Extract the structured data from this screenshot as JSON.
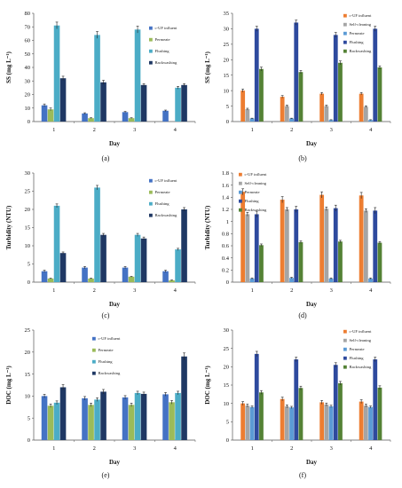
{
  "chart_data": [
    {
      "type": "bar",
      "panel_label": "(a)",
      "categories": [
        "1",
        "2",
        "3",
        "4"
      ],
      "ylabel": "SS (mg L⁻¹)",
      "xlabel": "Day",
      "ylim": [
        0,
        80
      ],
      "yticks": [
        0,
        10,
        20,
        30,
        40,
        50,
        60,
        70,
        80
      ],
      "legend_position": "right",
      "series": [
        {
          "name": "c-UF influent",
          "color": "#4472c4",
          "values": [
            12,
            6,
            7,
            8
          ],
          "errors": [
            1,
            0.5,
            0.5,
            0.5
          ]
        },
        {
          "name": "Permeate",
          "color": "#9bbb59",
          "values": [
            9,
            2.5,
            2.5,
            0
          ],
          "errors": [
            1,
            0.3,
            0.3,
            0
          ]
        },
        {
          "name": "Flushing",
          "color": "#4bacc6",
          "values": [
            71,
            64,
            68,
            25
          ],
          "errors": [
            2.5,
            2.5,
            2.5,
            1
          ]
        },
        {
          "name": "Backwashing",
          "color": "#1f3864",
          "values": [
            32,
            29,
            27,
            27
          ],
          "errors": [
            1.5,
            1.5,
            1,
            1
          ]
        }
      ]
    },
    {
      "type": "bar",
      "panel_label": "(b)",
      "categories": [
        "1",
        "2",
        "3",
        "4"
      ],
      "ylabel": "SS (mg L⁻¹)",
      "xlabel": "Day",
      "ylim": [
        0,
        35
      ],
      "yticks": [
        0,
        5,
        10,
        15,
        20,
        25,
        30,
        35
      ],
      "legend_position": "right",
      "series": [
        {
          "name": "c-UF influent",
          "color": "#ed7d31",
          "values": [
            10,
            8,
            9,
            9
          ],
          "errors": [
            0.5,
            0.4,
            0.4,
            0.4
          ]
        },
        {
          "name": "Self-cleaning",
          "color": "#a5a5a5",
          "values": [
            4,
            5,
            5,
            4.8
          ],
          "errors": [
            0.3,
            0.3,
            0.3,
            0.3
          ]
        },
        {
          "name": "Permeate",
          "color": "#5b9bd5",
          "values": [
            1,
            1,
            0.5,
            0.5
          ],
          "errors": [
            0.1,
            0.1,
            0.1,
            0.1
          ]
        },
        {
          "name": "Flushing",
          "color": "#2e4a9e",
          "values": [
            30,
            32,
            28,
            30
          ],
          "errors": [
            0.8,
            0.8,
            0.8,
            0.8
          ]
        },
        {
          "name": "Backwashing",
          "color": "#548235",
          "values": [
            17,
            16,
            19,
            17.5
          ],
          "errors": [
            0.6,
            0.5,
            0.6,
            0.5
          ]
        }
      ]
    },
    {
      "type": "bar",
      "panel_label": "(c)",
      "categories": [
        "1",
        "2",
        "3",
        "4"
      ],
      "ylabel": "Turbidity (NTU)",
      "xlabel": "Day",
      "ylim": [
        0,
        30
      ],
      "yticks": [
        0,
        5,
        10,
        15,
        20,
        25,
        30
      ],
      "legend_position": "right",
      "series": [
        {
          "name": "c-UF influent",
          "color": "#4472c4",
          "values": [
            3,
            4,
            4,
            3
          ],
          "errors": [
            0.3,
            0.3,
            0.3,
            0.3
          ]
        },
        {
          "name": "Permeate",
          "color": "#9bbb59",
          "values": [
            1,
            1,
            1.5,
            0.5
          ],
          "errors": [
            0.1,
            0.1,
            0.1,
            0.1
          ]
        },
        {
          "name": "Flushing",
          "color": "#4bacc6",
          "values": [
            21,
            26,
            13,
            9
          ],
          "errors": [
            0.5,
            0.6,
            0.4,
            0.3
          ]
        },
        {
          "name": "Backwashing",
          "color": "#1f3864",
          "values": [
            8,
            13,
            12,
            20
          ],
          "errors": [
            0.3,
            0.4,
            0.4,
            0.5
          ]
        }
      ]
    },
    {
      "type": "bar",
      "panel_label": "(d)",
      "categories": [
        "1",
        "2",
        "3",
        "4"
      ],
      "ylabel": "Turbidity (NTU)",
      "xlabel": "Day",
      "ylim": [
        0,
        1.8
      ],
      "yticks": [
        "0",
        "0.2",
        "0.4",
        "0.6",
        "0.8",
        "1",
        "1.2",
        "1.4",
        "1.6",
        "1.8"
      ],
      "legend_position": "left",
      "series": [
        {
          "name": "c-UF influent",
          "color": "#ed7d31",
          "values": [
            1.49,
            1.36,
            1.44,
            1.43
          ],
          "errors": [
            0.05,
            0.05,
            0.05,
            0.05
          ]
        },
        {
          "name": "Self-cleaning",
          "color": "#a5a5a5",
          "values": [
            1.12,
            1.2,
            1.21,
            1.18
          ],
          "errors": [
            0.03,
            0.03,
            0.03,
            0.03
          ]
        },
        {
          "name": "Permeate",
          "color": "#5b9bd5",
          "values": [
            0.06,
            0.07,
            0.06,
            0.06
          ],
          "errors": [
            0.01,
            0.01,
            0.01,
            0.01
          ]
        },
        {
          "name": "Flushing",
          "color": "#2e4a9e",
          "values": [
            1.12,
            1.2,
            1.22,
            1.18
          ],
          "errors": [
            0.05,
            0.05,
            0.05,
            0.05
          ]
        },
        {
          "name": "Backwashing",
          "color": "#548235",
          "values": [
            0.61,
            0.66,
            0.67,
            0.65
          ],
          "errors": [
            0.02,
            0.02,
            0.02,
            0.02
          ]
        }
      ]
    },
    {
      "type": "bar",
      "panel_label": "(e)",
      "categories": [
        "1",
        "2",
        "3",
        "4"
      ],
      "ylabel": "DOC (mg L⁻¹)",
      "xlabel": "Day",
      "ylim": [
        0,
        25
      ],
      "yticks": [
        0,
        5,
        10,
        15,
        20,
        25
      ],
      "legend_position": "right",
      "series": [
        {
          "name": "c-UF influent",
          "color": "#4472c4",
          "values": [
            10,
            9.5,
            9.7,
            10.4
          ],
          "errors": [
            0.4,
            0.4,
            0.4,
            0.4
          ]
        },
        {
          "name": "Permeate",
          "color": "#9bbb59",
          "values": [
            7.8,
            8,
            8,
            8.6
          ],
          "errors": [
            0.4,
            0.4,
            0.4,
            0.4
          ]
        },
        {
          "name": "Flushing",
          "color": "#4bacc6",
          "values": [
            8.5,
            9.2,
            10.7,
            10.7
          ],
          "errors": [
            0.4,
            0.4,
            0.4,
            0.4
          ]
        },
        {
          "name": "Backwashing",
          "color": "#1f3864",
          "values": [
            12,
            11,
            10.5,
            19
          ],
          "errors": [
            0.6,
            0.5,
            0.4,
            0.8
          ]
        }
      ]
    },
    {
      "type": "bar",
      "panel_label": "(f)",
      "categories": [
        "1",
        "2",
        "3",
        "4"
      ],
      "ylabel": "DOC (mg L⁻¹)",
      "xlabel": "Day",
      "ylim": [
        0,
        30
      ],
      "yticks": [
        0,
        5,
        10,
        15,
        20,
        25,
        30
      ],
      "legend_position": "right",
      "series": [
        {
          "name": "c-UF influent",
          "color": "#ed7d31",
          "values": [
            10,
            11.2,
            10.3,
            10.5
          ],
          "errors": [
            0.5,
            0.5,
            0.5,
            0.5
          ]
        },
        {
          "name": "Self-cleaning",
          "color": "#a5a5a5",
          "values": [
            9.4,
            9.2,
            9.7,
            9.4
          ],
          "errors": [
            0.4,
            0.4,
            0.4,
            0.4
          ]
        },
        {
          "name": "Permeate",
          "color": "#5b9bd5",
          "values": [
            9,
            8.9,
            9.2,
            9
          ],
          "errors": [
            0.3,
            0.3,
            0.3,
            0.3
          ]
        },
        {
          "name": "Flushing",
          "color": "#2e4a9e",
          "values": [
            23.5,
            22,
            20.5,
            22
          ],
          "errors": [
            0.7,
            0.6,
            0.6,
            0.6
          ]
        },
        {
          "name": "Backwashing",
          "color": "#548235",
          "values": [
            13,
            14.2,
            15.5,
            14.3
          ],
          "errors": [
            0.5,
            0.5,
            0.5,
            0.5
          ]
        }
      ]
    }
  ]
}
